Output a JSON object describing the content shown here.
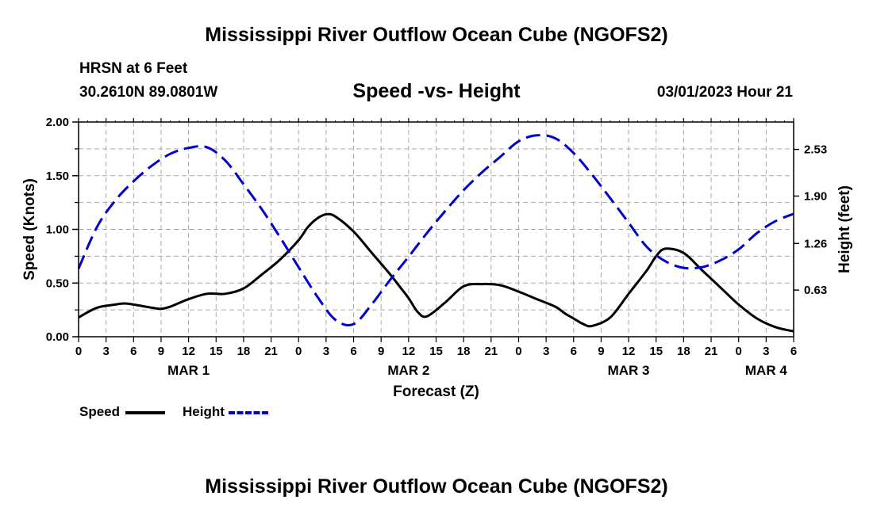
{
  "header": {
    "title": "Mississippi River Outflow Ocean Cube (NGOFS2)",
    "station": "HRSN at 6 Feet",
    "coords": "30.2610N  89.0801W",
    "subtitle": "Speed -vs- Height",
    "datetime": "03/01/2023 Hour 21"
  },
  "footer": {
    "title": "Mississippi River Outflow Ocean Cube (NGOFS2)"
  },
  "legend": {
    "speed_label": "Speed",
    "height_label": "Height"
  },
  "colors": {
    "speed": "#000000",
    "height": "#0000cc",
    "grid": "#aaaaaa"
  },
  "chart_data": {
    "type": "line",
    "title": "Speed -vs- Height",
    "xlabel": "Forecast (Z)",
    "ylabel": "Speed (Knots)",
    "y2label": "Height (feet)",
    "x_hours_range": [
      0,
      78
    ],
    "x_tick_step_hours": 3,
    "x_tick_labels": [
      "0",
      "3",
      "6",
      "9",
      "12",
      "15",
      "18",
      "21",
      "0",
      "3",
      "6",
      "9",
      "12",
      "15",
      "18",
      "21",
      "0",
      "3",
      "6",
      "9",
      "12",
      "15",
      "18",
      "21",
      "0",
      "3",
      "6"
    ],
    "day_labels": [
      {
        "label": "MAR 1",
        "hour": 12
      },
      {
        "label": "MAR 2",
        "hour": 36
      },
      {
        "label": "MAR 3",
        "hour": 60
      },
      {
        "label": "MAR 4",
        "hour": 75
      }
    ],
    "ylim": [
      0,
      2.0
    ],
    "y_ticks": [
      0,
      0.5,
      1.0,
      1.5,
      2.0
    ],
    "y_tick_labels": [
      "0.00",
      "0.50",
      "1.00",
      "1.50",
      "2.00"
    ],
    "y2lim": [
      0,
      2.9
    ],
    "y2_ticks": [
      0.63,
      1.26,
      1.9,
      2.53
    ],
    "y2_tick_labels": [
      "0.63",
      "1.26",
      "1.90",
      "2.53"
    ],
    "series": [
      {
        "name": "Speed",
        "axis": "left",
        "style": "solid",
        "x": [
          0,
          2,
          4,
          5,
          6,
          8,
          9,
          10,
          12,
          14,
          16,
          18,
          20,
          22,
          24,
          25,
          26,
          27,
          28,
          30,
          32,
          34,
          35,
          36,
          37,
          38,
          40,
          42,
          44,
          46,
          48,
          50,
          52,
          53,
          54,
          55,
          56,
          58,
          60,
          62,
          63,
          64,
          66,
          68,
          70,
          72,
          74,
          76,
          78
        ],
        "values": [
          0.18,
          0.27,
          0.3,
          0.31,
          0.3,
          0.27,
          0.26,
          0.28,
          0.35,
          0.4,
          0.4,
          0.45,
          0.58,
          0.72,
          0.9,
          1.02,
          1.1,
          1.14,
          1.12,
          0.98,
          0.78,
          0.58,
          0.47,
          0.36,
          0.23,
          0.19,
          0.32,
          0.47,
          0.49,
          0.48,
          0.42,
          0.35,
          0.28,
          0.22,
          0.17,
          0.12,
          0.1,
          0.18,
          0.4,
          0.62,
          0.75,
          0.82,
          0.78,
          0.62,
          0.46,
          0.3,
          0.17,
          0.09,
          0.05
        ]
      },
      {
        "name": "Height",
        "axis": "right",
        "style": "dashed",
        "x": [
          0,
          2,
          4,
          6,
          8,
          10,
          12,
          14,
          16,
          18,
          20,
          22,
          24,
          26,
          28,
          30,
          32,
          34,
          36,
          38,
          40,
          42,
          44,
          46,
          48,
          50,
          52,
          54,
          56,
          58,
          60,
          62,
          64,
          66,
          68,
          70,
          72,
          74,
          76,
          78
        ],
        "values": [
          0.92,
          1.48,
          1.84,
          2.1,
          2.31,
          2.47,
          2.55,
          2.56,
          2.38,
          2.06,
          1.72,
          1.34,
          0.94,
          0.55,
          0.23,
          0.17,
          0.44,
          0.77,
          1.08,
          1.4,
          1.7,
          1.98,
          2.22,
          2.43,
          2.64,
          2.72,
          2.68,
          2.48,
          2.19,
          1.87,
          1.54,
          1.21,
          1.02,
          0.93,
          0.94,
          1.03,
          1.18,
          1.4,
          1.56,
          1.66
        ]
      }
    ]
  }
}
